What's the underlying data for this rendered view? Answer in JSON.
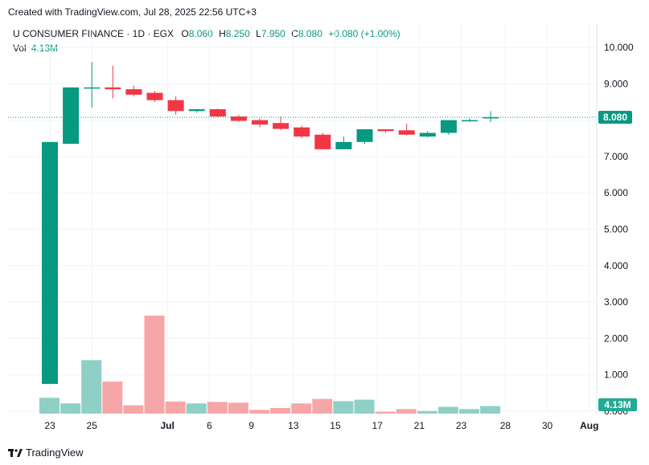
{
  "header": {
    "created_with": "Created with TradingView.com, Jul 28, 2025 22:56 UTC+3"
  },
  "legend": {
    "symbol": "U CONSUMER FINANCE · 1D · EGX",
    "o_label": "O",
    "o_value": "8.060",
    "h_label": "H",
    "h_value": "8.250",
    "l_label": "L",
    "l_value": "7.950",
    "c_label": "C",
    "c_value": "8.080",
    "change": "+0.080 (+1.00%)"
  },
  "volume_legend": {
    "label": "Vol",
    "value": "4.13M"
  },
  "footer": {
    "brand": "TradingView"
  },
  "colors": {
    "up": "#089981",
    "down": "#f23645",
    "vol_up": "#8fd0c6",
    "vol_down": "#f7a6a8",
    "grid": "#f0f3fa",
    "text": "#131722"
  },
  "chart_data": {
    "type": "candlestick",
    "price_axis": {
      "range": [
        0,
        10
      ],
      "ticks": [
        "10.000",
        "9.000",
        "8.000",
        "7.000",
        "6.000",
        "5.000",
        "4.000",
        "3.000",
        "2.000",
        "1.000",
        "0.000"
      ],
      "last_price_label": "8.080",
      "last_price": 8.08,
      "volume_label": "4.13M"
    },
    "x_axis": {
      "ticks": [
        {
          "label": "23",
          "index": 0
        },
        {
          "label": "25",
          "index": 2
        },
        {
          "label": "Jul",
          "index": 5.6
        },
        {
          "label": "6",
          "index": 7.6
        },
        {
          "label": "9",
          "index": 9.6
        },
        {
          "label": "13",
          "index": 11.6
        },
        {
          "label": "15",
          "index": 13.6
        },
        {
          "label": "17",
          "index": 15.6
        },
        {
          "label": "21",
          "index": 17.6
        },
        {
          "label": "23",
          "index": 19.6
        },
        {
          "label": "28",
          "index": 21.7
        },
        {
          "label": "30",
          "index": 23.7
        },
        {
          "label": "Aug",
          "index": 25.7
        }
      ]
    },
    "candles": [
      {
        "o": 0.75,
        "h": 7.4,
        "l": 0.75,
        "c": 7.4
      },
      {
        "o": 7.35,
        "h": 8.9,
        "l": 7.35,
        "c": 8.9
      },
      {
        "o": 8.9,
        "h": 9.6,
        "l": 8.35,
        "c": 8.9
      },
      {
        "o": 8.9,
        "h": 9.5,
        "l": 8.6,
        "c": 8.85
      },
      {
        "o": 8.85,
        "h": 8.95,
        "l": 8.65,
        "c": 8.7
      },
      {
        "o": 8.75,
        "h": 8.8,
        "l": 8.5,
        "c": 8.55
      },
      {
        "o": 8.55,
        "h": 8.65,
        "l": 8.15,
        "c": 8.25
      },
      {
        "o": 8.25,
        "h": 8.3,
        "l": 8.2,
        "c": 8.3
      },
      {
        "o": 8.3,
        "h": 8.32,
        "l": 8.08,
        "c": 8.1
      },
      {
        "o": 8.1,
        "h": 8.15,
        "l": 7.95,
        "c": 7.98
      },
      {
        "o": 8.0,
        "h": 8.05,
        "l": 7.8,
        "c": 7.88
      },
      {
        "o": 7.92,
        "h": 8.1,
        "l": 7.73,
        "c": 7.76
      },
      {
        "o": 7.8,
        "h": 7.85,
        "l": 7.5,
        "c": 7.55
      },
      {
        "o": 7.6,
        "h": 7.65,
        "l": 7.2,
        "c": 7.2
      },
      {
        "o": 7.2,
        "h": 7.55,
        "l": 7.2,
        "c": 7.4
      },
      {
        "o": 7.4,
        "h": 7.75,
        "l": 7.35,
        "c": 7.75
      },
      {
        "o": 7.75,
        "h": 7.75,
        "l": 7.65,
        "c": 7.7
      },
      {
        "o": 7.72,
        "h": 7.9,
        "l": 7.58,
        "c": 7.6
      },
      {
        "o": 7.55,
        "h": 7.7,
        "l": 7.52,
        "c": 7.65
      },
      {
        "o": 7.65,
        "h": 8.0,
        "l": 7.6,
        "c": 8.0
      },
      {
        "o": 7.98,
        "h": 8.05,
        "l": 7.95,
        "c": 8.0
      },
      {
        "o": 8.06,
        "h": 8.25,
        "l": 7.95,
        "c": 8.08
      }
    ],
    "volume": {
      "max": 2.6,
      "bars": [
        {
          "v": 0.42,
          "up": true
        },
        {
          "v": 0.27,
          "up": true
        },
        {
          "v": 1.42,
          "up": true
        },
        {
          "v": 0.85,
          "up": false
        },
        {
          "v": 0.22,
          "up": false
        },
        {
          "v": 2.6,
          "up": false
        },
        {
          "v": 0.32,
          "up": false
        },
        {
          "v": 0.27,
          "up": true
        },
        {
          "v": 0.31,
          "up": false
        },
        {
          "v": 0.29,
          "up": false
        },
        {
          "v": 0.1,
          "up": false
        },
        {
          "v": 0.15,
          "up": false
        },
        {
          "v": 0.27,
          "up": false
        },
        {
          "v": 0.39,
          "up": false
        },
        {
          "v": 0.33,
          "up": true
        },
        {
          "v": 0.37,
          "up": true
        },
        {
          "v": 0.05,
          "up": false
        },
        {
          "v": 0.12,
          "up": false
        },
        {
          "v": 0.07,
          "up": true
        },
        {
          "v": 0.18,
          "up": true
        },
        {
          "v": 0.12,
          "up": true
        },
        {
          "v": 0.2,
          "up": true
        }
      ]
    }
  }
}
